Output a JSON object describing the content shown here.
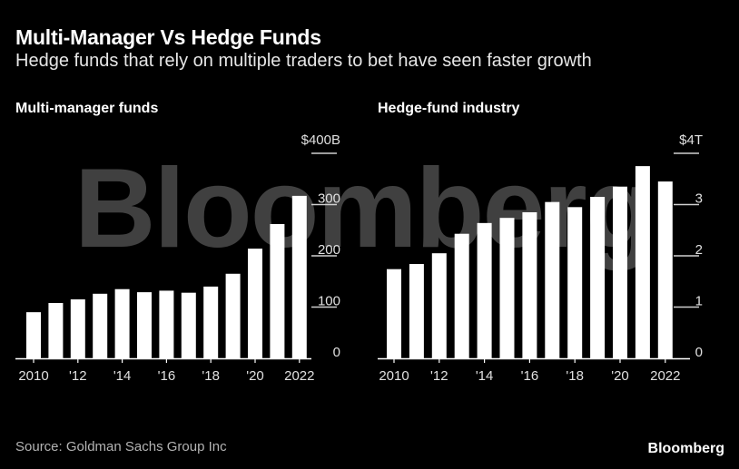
{
  "header": {
    "title": "Multi-Manager Vs Hedge Funds",
    "subtitle": "Hedge funds that rely on multiple traders to bet have seen faster growth"
  },
  "watermark": "Bloomberg",
  "footer": {
    "source": "Source: Goldman Sachs Group Inc",
    "brand": "Bloomberg"
  },
  "colors": {
    "background": "#000000",
    "bar": "#ffffff",
    "text": "#ffffff"
  },
  "chart_data": [
    {
      "type": "bar",
      "title": "Multi-manager funds",
      "categories": [
        "2010",
        "2011",
        "2012",
        "2013",
        "2014",
        "2015",
        "2016",
        "2017",
        "2018",
        "2019",
        "2020",
        "2021",
        "2022"
      ],
      "values": [
        90,
        108,
        115,
        126,
        135,
        129,
        132,
        128,
        140,
        165,
        214,
        262,
        317
      ],
      "x_tick_labels": [
        "2010",
        "'12",
        "'14",
        "'16",
        "'18",
        "'20",
        "2022"
      ],
      "y_ticks": [
        0,
        100,
        200,
        300,
        400
      ],
      "y_tick_labels": [
        "0",
        "100",
        "200",
        "300",
        "$400B"
      ],
      "ylim": [
        0,
        400
      ],
      "xlabel": "",
      "ylabel": "",
      "grid": false,
      "tick_side": "right"
    },
    {
      "type": "bar",
      "title": "Hedge-fund industry",
      "categories": [
        "2010",
        "2011",
        "2012",
        "2013",
        "2014",
        "2015",
        "2016",
        "2017",
        "2018",
        "2019",
        "2020",
        "2021",
        "2022"
      ],
      "values": [
        1.74,
        1.84,
        2.05,
        2.43,
        2.64,
        2.74,
        2.85,
        3.05,
        2.95,
        3.15,
        3.35,
        3.75,
        3.45
      ],
      "x_tick_labels": [
        "2010",
        "'12",
        "'14",
        "'16",
        "'18",
        "'20",
        "2022"
      ],
      "y_ticks": [
        0,
        1,
        2,
        3,
        4
      ],
      "y_tick_labels": [
        "0",
        "1",
        "2",
        "3",
        "$4T"
      ],
      "ylim": [
        0,
        4
      ],
      "xlabel": "",
      "ylabel": "",
      "grid": false,
      "tick_side": "right"
    }
  ]
}
